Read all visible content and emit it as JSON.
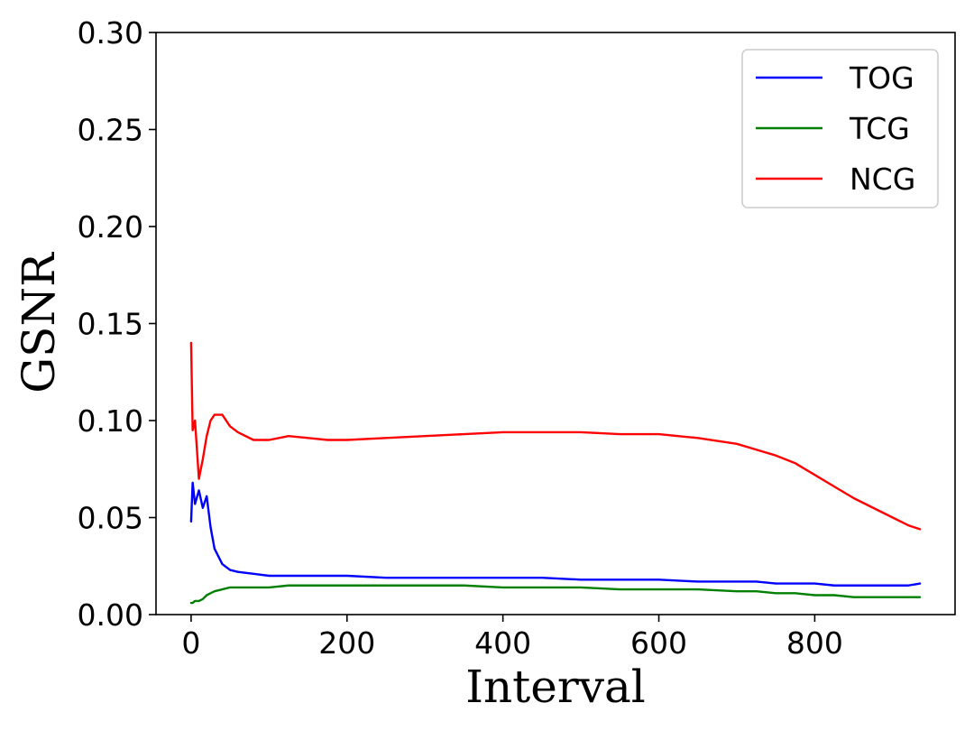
{
  "chart_data": {
    "type": "line",
    "title": "",
    "xlabel": "Interval",
    "ylabel": "GSNR",
    "xlim": [
      -45,
      980
    ],
    "ylim": [
      0,
      0.3
    ],
    "xticks": [
      0,
      200,
      400,
      600,
      800
    ],
    "xtick_labels": [
      "0",
      "200",
      "400",
      "600",
      "800"
    ],
    "yticks": [
      0,
      0.05,
      0.1,
      0.15,
      0.2,
      0.25,
      0.3
    ],
    "ytick_labels": [
      "0.00",
      "0.05",
      "0.10",
      "0.15",
      "0.20",
      "0.25",
      "0.30"
    ],
    "grid": false,
    "legend_position": "top-right",
    "x": [
      0,
      2,
      5,
      10,
      15,
      20,
      25,
      30,
      40,
      50,
      60,
      80,
      100,
      125,
      150,
      175,
      200,
      250,
      300,
      350,
      400,
      450,
      500,
      550,
      600,
      650,
      700,
      725,
      750,
      775,
      800,
      825,
      850,
      875,
      900,
      920,
      935
    ],
    "series": [
      {
        "name": "TOG",
        "color": "#0000ff",
        "values": [
          0.048,
          0.068,
          0.057,
          0.064,
          0.055,
          0.061,
          0.045,
          0.034,
          0.026,
          0.023,
          0.022,
          0.021,
          0.02,
          0.02,
          0.02,
          0.02,
          0.02,
          0.019,
          0.019,
          0.019,
          0.019,
          0.019,
          0.018,
          0.018,
          0.018,
          0.017,
          0.017,
          0.017,
          0.016,
          0.016,
          0.016,
          0.015,
          0.015,
          0.015,
          0.015,
          0.015,
          0.016
        ]
      },
      {
        "name": "TCG",
        "color": "#008000",
        "values": [
          0.006,
          0.006,
          0.007,
          0.007,
          0.008,
          0.01,
          0.011,
          0.012,
          0.013,
          0.014,
          0.014,
          0.014,
          0.014,
          0.015,
          0.015,
          0.015,
          0.015,
          0.015,
          0.015,
          0.015,
          0.014,
          0.014,
          0.014,
          0.013,
          0.013,
          0.013,
          0.012,
          0.012,
          0.011,
          0.011,
          0.01,
          0.01,
          0.009,
          0.009,
          0.009,
          0.009,
          0.009
        ]
      },
      {
        "name": "NCG",
        "color": "#ff0000",
        "values": [
          0.14,
          0.095,
          0.1,
          0.07,
          0.08,
          0.092,
          0.1,
          0.103,
          0.103,
          0.097,
          0.094,
          0.09,
          0.09,
          0.092,
          0.091,
          0.09,
          0.09,
          0.091,
          0.092,
          0.093,
          0.094,
          0.094,
          0.094,
          0.093,
          0.093,
          0.091,
          0.088,
          0.085,
          0.082,
          0.078,
          0.072,
          0.066,
          0.06,
          0.055,
          0.05,
          0.046,
          0.044
        ]
      }
    ],
    "legend": [
      "TOG",
      "TCG",
      "NCG"
    ]
  }
}
